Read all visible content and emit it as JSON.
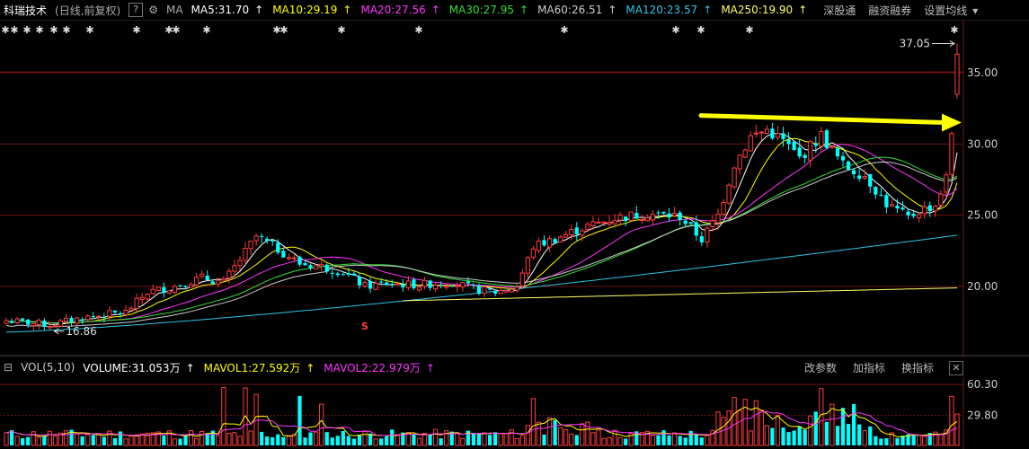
{
  "header": {
    "stock_name": "科瑞技术",
    "mode": "(日线,前复权)",
    "help": "?",
    "ma_label": "MA",
    "ma_items": [
      {
        "label": "MA5:31.70",
        "arrow": "↑",
        "color": "#ffffff"
      },
      {
        "label": "MA10:29.19",
        "arrow": "↑",
        "color": "#ffff00"
      },
      {
        "label": "MA20:27.56",
        "arrow": "↑",
        "color": "#ff33ff"
      },
      {
        "label": "MA30:27.95",
        "arrow": "↑",
        "color": "#33dd33"
      },
      {
        "label": "MA60:26.51",
        "arrow": "↑",
        "color": "#cccccc"
      },
      {
        "label": "MA120:23.57",
        "arrow": "↑",
        "color": "#2ec4e6"
      },
      {
        "label": "MA250:19.90",
        "arrow": "↑",
        "color": "#ffff66"
      }
    ],
    "buttons": [
      "深股通",
      "融资融券",
      "设置均线"
    ]
  },
  "volume_header": {
    "title": "VOL(5,10)",
    "items": [
      {
        "label": "VOLUME:31.053万",
        "arrow": "↑",
        "color": "#ffffff"
      },
      {
        "label": "MAVOL1:27.592万",
        "arrow": "↑",
        "color": "#ffff00"
      },
      {
        "label": "MAVOL2:22.979万",
        "arrow": "↑",
        "color": "#ff33ff"
      }
    ],
    "buttons": [
      "改参数",
      "加指标",
      "换指标"
    ],
    "close": "✕"
  },
  "annotations": {
    "high_label": "37.05",
    "low_label": "16.86",
    "event_marker": "S",
    "top_star": "✱"
  },
  "colors": {
    "up": "#ff3b3b",
    "down": "#00ffff",
    "grid": "#6a1414",
    "axis_text": "#cccccc",
    "arrow": "#ffff00"
  },
  "chart_data": {
    "type": "candlestick",
    "price_axis": {
      "ticks": [
        20.0,
        25.0,
        30.0,
        35.0
      ],
      "range": [
        15.0,
        38.0
      ]
    },
    "volume_axis": {
      "ticks": [
        29.8,
        60.3
      ],
      "unit": "万"
    },
    "high": 37.05,
    "low": 16.86,
    "last_close": 36.3,
    "moving_averages": [
      {
        "name": "MA5",
        "value": 31.7
      },
      {
        "name": "MA10",
        "value": 29.19
      },
      {
        "name": "MA20",
        "value": 27.56
      },
      {
        "name": "MA30",
        "value": 27.95
      },
      {
        "name": "MA60",
        "value": 26.51
      },
      {
        "name": "MA120",
        "value": 23.57
      },
      {
        "name": "MA250",
        "value": 19.9
      }
    ],
    "volume": {
      "VOLUME": 31.053,
      "MAVOL1": 27.592,
      "MAVOL2": 22.979
    },
    "trend_arrow": {
      "from": 32.0,
      "to": 31.5
    },
    "grid": true
  }
}
